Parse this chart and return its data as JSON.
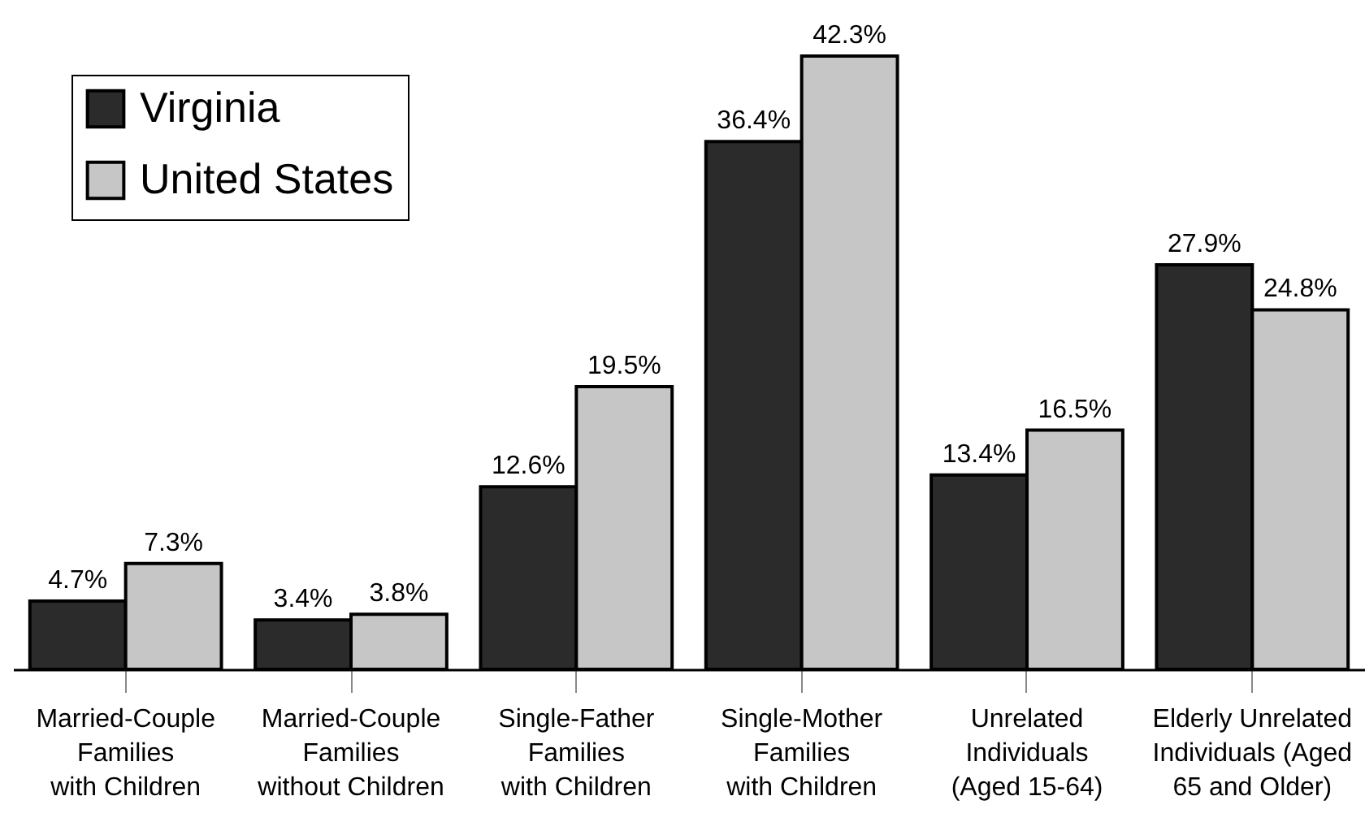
{
  "chart_data": {
    "type": "bar",
    "categories": [
      "Married-Couple Families with Children",
      "Married-Couple Families without Children",
      "Single-Father Families with Children",
      "Single-Mother Families with Children",
      "Unrelated Individuals (Aged 15-64)",
      "Elderly Unrelated Individuals (Aged 65 and Older)"
    ],
    "series": [
      {
        "name": "Virginia",
        "color": "#2b2b2b",
        "values": [
          4.7,
          3.4,
          12.6,
          36.4,
          13.4,
          27.9
        ],
        "value_labels": [
          "4.7%",
          "3.4%",
          "12.6%",
          "36.4%",
          "13.4%",
          "27.9%"
        ]
      },
      {
        "name": "United States",
        "color": "#c6c6c6",
        "values": [
          7.3,
          3.8,
          19.5,
          42.3,
          16.5,
          24.8
        ],
        "value_labels": [
          "7.3%",
          "3.8%",
          "19.5%",
          "42.3%",
          "16.5%",
          "24.8%"
        ]
      }
    ],
    "legend": "top left"
  }
}
